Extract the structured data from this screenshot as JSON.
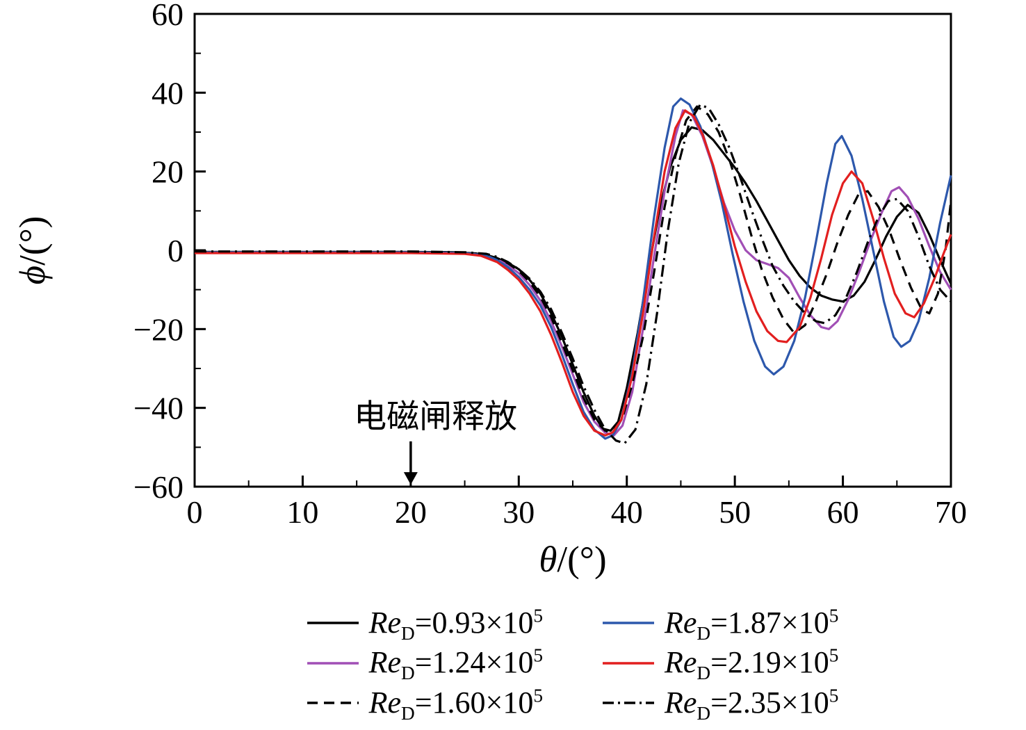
{
  "chart_data": {
    "type": "line",
    "xlabel_symbol": "θ",
    "xlabel_unit": "/(°)",
    "ylabel_symbol": "ϕ",
    "ylabel_unit": "/(°)",
    "xlim": [
      0,
      70
    ],
    "ylim": [
      -60,
      60
    ],
    "x_ticks": [
      0,
      10,
      20,
      30,
      40,
      50,
      60,
      70
    ],
    "y_ticks": [
      -60,
      -40,
      -20,
      0,
      20,
      40,
      60
    ],
    "x_minor_step": 5,
    "y_minor_step": 10,
    "grid": false,
    "legend_position": "bottom",
    "annotation": {
      "text": "电磁闸释放",
      "text_x": 22.3,
      "text_y": -45,
      "arrow_x": 20,
      "arrow_y1": -48.5,
      "arrow_y2": -59.5
    },
    "series": [
      {
        "name": "Re_D=0.93×10^5",
        "color": "#000000",
        "dash": "solid",
        "points": [
          [
            0,
            -0.4
          ],
          [
            5,
            -0.4
          ],
          [
            10,
            -0.4
          ],
          [
            15,
            -0.4
          ],
          [
            20,
            -0.4
          ],
          [
            24,
            -0.5
          ],
          [
            26,
            -0.8
          ],
          [
            27,
            -1.2
          ],
          [
            28,
            -2
          ],
          [
            29,
            -3.2
          ],
          [
            30,
            -4.8
          ],
          [
            31,
            -7.5
          ],
          [
            32,
            -11
          ],
          [
            33,
            -16
          ],
          [
            34,
            -22
          ],
          [
            35,
            -29
          ],
          [
            36,
            -36
          ],
          [
            37,
            -42
          ],
          [
            37.8,
            -45.3
          ],
          [
            38.5,
            -45.8
          ],
          [
            39.2,
            -43.5
          ],
          [
            40,
            -35
          ],
          [
            41,
            -21
          ],
          [
            42,
            -5
          ],
          [
            43,
            10
          ],
          [
            44,
            21
          ],
          [
            45,
            28
          ],
          [
            46,
            31.2
          ],
          [
            47,
            30.5
          ],
          [
            48,
            28
          ],
          [
            49,
            24.5
          ],
          [
            50,
            21
          ],
          [
            51,
            17
          ],
          [
            52,
            12.5
          ],
          [
            53,
            7.5
          ],
          [
            54,
            2.5
          ],
          [
            55,
            -2.5
          ],
          [
            56,
            -6.5
          ],
          [
            57,
            -9.5
          ],
          [
            58,
            -11.5
          ],
          [
            59,
            -12.5
          ],
          [
            60,
            -13
          ],
          [
            61,
            -11.5
          ],
          [
            62,
            -8
          ],
          [
            63,
            -2.5
          ],
          [
            64,
            3.5
          ],
          [
            65,
            8.5
          ],
          [
            66,
            11.5
          ],
          [
            67,
            9.5
          ],
          [
            68,
            4
          ],
          [
            69,
            -2.5
          ],
          [
            70,
            -8.5
          ]
        ]
      },
      {
        "name": "Re_D=1.24×10^5",
        "color": "#A14FB5",
        "dash": "solid",
        "points": [
          [
            0,
            -0.6
          ],
          [
            5,
            -0.6
          ],
          [
            10,
            -0.6
          ],
          [
            15,
            -0.6
          ],
          [
            20,
            -0.6
          ],
          [
            25,
            -0.8
          ],
          [
            27,
            -1.4
          ],
          [
            28,
            -2.3
          ],
          [
            29,
            -3.8
          ],
          [
            30,
            -5.8
          ],
          [
            31,
            -8.8
          ],
          [
            32,
            -12.8
          ],
          [
            33,
            -18
          ],
          [
            34,
            -24.5
          ],
          [
            35,
            -31.5
          ],
          [
            36,
            -38.5
          ],
          [
            37,
            -43.5
          ],
          [
            38,
            -46.3
          ],
          [
            38.8,
            -47
          ],
          [
            39.6,
            -44.5
          ],
          [
            40.5,
            -36
          ],
          [
            41.5,
            -20
          ],
          [
            42.5,
            -2
          ],
          [
            43.5,
            15
          ],
          [
            44.5,
            29
          ],
          [
            45.2,
            35.5
          ],
          [
            46,
            34.5
          ],
          [
            47,
            29
          ],
          [
            48,
            21
          ],
          [
            49,
            12
          ],
          [
            50,
            5
          ],
          [
            51,
            0
          ],
          [
            52,
            -2.5
          ],
          [
            53,
            -3.5
          ],
          [
            54,
            -4.5
          ],
          [
            55,
            -7
          ],
          [
            56,
            -12
          ],
          [
            57,
            -16.5
          ],
          [
            58,
            -19.5
          ],
          [
            58.7,
            -20
          ],
          [
            59.5,
            -18
          ],
          [
            60.5,
            -12.5
          ],
          [
            61.5,
            -5.5
          ],
          [
            62.5,
            2
          ],
          [
            63.5,
            9
          ],
          [
            64.5,
            15
          ],
          [
            65.2,
            16
          ],
          [
            66,
            13.5
          ],
          [
            67,
            8
          ],
          [
            68,
            1
          ],
          [
            69,
            -5.5
          ],
          [
            70,
            -10
          ]
        ]
      },
      {
        "name": "Re_D=1.60×10^5",
        "color": "#000000",
        "dash": "dashed",
        "points": [
          [
            0,
            -0.5
          ],
          [
            5,
            -0.5
          ],
          [
            10,
            -0.5
          ],
          [
            15,
            -0.5
          ],
          [
            20,
            -0.5
          ],
          [
            25,
            -0.7
          ],
          [
            27,
            -1.2
          ],
          [
            28,
            -2
          ],
          [
            29,
            -3.3
          ],
          [
            30,
            -5.2
          ],
          [
            31,
            -8
          ],
          [
            32,
            -11.8
          ],
          [
            33,
            -17
          ],
          [
            34,
            -23.5
          ],
          [
            35,
            -30.5
          ],
          [
            36,
            -37.5
          ],
          [
            37,
            -43
          ],
          [
            38,
            -45.8
          ],
          [
            38.8,
            -45.5
          ],
          [
            39.6,
            -42.5
          ],
          [
            40.5,
            -34
          ],
          [
            41.5,
            -22
          ],
          [
            42.5,
            -6
          ],
          [
            43.5,
            11
          ],
          [
            44.5,
            24
          ],
          [
            45.5,
            33
          ],
          [
            46.5,
            36.5
          ],
          [
            47.5,
            34.5
          ],
          [
            48.5,
            30
          ],
          [
            49.5,
            23
          ],
          [
            50.5,
            14
          ],
          [
            51.5,
            4
          ],
          [
            52.5,
            -5
          ],
          [
            53.5,
            -12
          ],
          [
            54.5,
            -17.5
          ],
          [
            55.5,
            -21
          ],
          [
            56.5,
            -19
          ],
          [
            57.5,
            -13
          ],
          [
            58.5,
            -6
          ],
          [
            59.5,
            2
          ],
          [
            60.5,
            9
          ],
          [
            61.5,
            14.5
          ],
          [
            62.3,
            15
          ],
          [
            63.3,
            11
          ],
          [
            64.3,
            5
          ],
          [
            65.3,
            -2.5
          ],
          [
            66.3,
            -9.5
          ],
          [
            67.3,
            -15
          ],
          [
            68,
            -16
          ],
          [
            68.8,
            -11
          ],
          [
            69.5,
            0
          ],
          [
            70,
            12.5
          ]
        ]
      },
      {
        "name": "Re_D=1.87×10^5",
        "color": "#2D58AC",
        "dash": "solid",
        "points": [
          [
            0,
            -0.5
          ],
          [
            5,
            -0.5
          ],
          [
            10,
            -0.5
          ],
          [
            15,
            -0.5
          ],
          [
            20,
            -0.5
          ],
          [
            25,
            -0.7
          ],
          [
            27,
            -1.3
          ],
          [
            28,
            -2.5
          ],
          [
            29,
            -4.3
          ],
          [
            30,
            -6.8
          ],
          [
            31,
            -10
          ],
          [
            32,
            -14
          ],
          [
            33,
            -19.5
          ],
          [
            34,
            -26.5
          ],
          [
            35,
            -34
          ],
          [
            36,
            -41
          ],
          [
            37,
            -45.5
          ],
          [
            38,
            -47.8
          ],
          [
            38.7,
            -47
          ],
          [
            39.5,
            -43
          ],
          [
            40.5,
            -31
          ],
          [
            41.5,
            -13
          ],
          [
            42.5,
            8
          ],
          [
            43.5,
            26
          ],
          [
            44.3,
            36.5
          ],
          [
            45,
            38.5
          ],
          [
            45.8,
            37
          ],
          [
            46.8,
            31.5
          ],
          [
            47.8,
            23
          ],
          [
            48.8,
            12
          ],
          [
            49.8,
            -1
          ],
          [
            50.8,
            -13
          ],
          [
            51.8,
            -23
          ],
          [
            52.8,
            -29.5
          ],
          [
            53.6,
            -31.5
          ],
          [
            54.5,
            -29.5
          ],
          [
            55.5,
            -23
          ],
          [
            56.5,
            -12
          ],
          [
            57.5,
            2
          ],
          [
            58.5,
            17
          ],
          [
            59.3,
            27
          ],
          [
            59.9,
            29
          ],
          [
            60.8,
            24
          ],
          [
            61.8,
            13
          ],
          [
            62.8,
            0
          ],
          [
            63.8,
            -13
          ],
          [
            64.7,
            -22
          ],
          [
            65.4,
            -24.5
          ],
          [
            66.2,
            -23
          ],
          [
            67,
            -18
          ],
          [
            68,
            -7
          ],
          [
            69,
            7
          ],
          [
            70,
            19
          ]
        ]
      },
      {
        "name": "Re_D=2.19×10^5",
        "color": "#E21F1F",
        "dash": "solid",
        "points": [
          [
            0,
            -0.7
          ],
          [
            5,
            -0.7
          ],
          [
            10,
            -0.7
          ],
          [
            15,
            -0.7
          ],
          [
            20,
            -0.7
          ],
          [
            25,
            -0.9
          ],
          [
            26.5,
            -1.4
          ],
          [
            28,
            -3
          ],
          [
            29,
            -5
          ],
          [
            30,
            -7.5
          ],
          [
            31,
            -11
          ],
          [
            32,
            -15.5
          ],
          [
            33,
            -21.5
          ],
          [
            34,
            -28.5
          ],
          [
            35,
            -36
          ],
          [
            36,
            -42
          ],
          [
            37,
            -45.8
          ],
          [
            38,
            -47
          ],
          [
            38.7,
            -46.2
          ],
          [
            39.5,
            -43
          ],
          [
            40.5,
            -32
          ],
          [
            41.5,
            -16
          ],
          [
            42.5,
            3
          ],
          [
            43.5,
            20
          ],
          [
            44.5,
            31
          ],
          [
            45.4,
            35.5
          ],
          [
            46.2,
            34
          ],
          [
            47,
            29.5
          ],
          [
            48,
            21.5
          ],
          [
            49,
            11.5
          ],
          [
            50,
            1
          ],
          [
            51,
            -8
          ],
          [
            52,
            -15.5
          ],
          [
            53,
            -20.5
          ],
          [
            54,
            -23
          ],
          [
            54.8,
            -23.3
          ],
          [
            56,
            -19.5
          ],
          [
            57,
            -12
          ],
          [
            58,
            -2
          ],
          [
            59,
            9
          ],
          [
            60,
            17
          ],
          [
            60.8,
            20
          ],
          [
            61.8,
            17
          ],
          [
            62.8,
            8
          ],
          [
            63.8,
            -2
          ],
          [
            64.8,
            -11
          ],
          [
            65.8,
            -16
          ],
          [
            66.6,
            -17
          ],
          [
            67.5,
            -13.5
          ],
          [
            68.5,
            -7
          ],
          [
            69.3,
            -1
          ],
          [
            70,
            4
          ]
        ]
      },
      {
        "name": "Re_D=2.35×10^5",
        "color": "#000000",
        "dash": "dashdot",
        "points": [
          [
            0,
            -0.3
          ],
          [
            5,
            -0.3
          ],
          [
            10,
            -0.3
          ],
          [
            15,
            -0.3
          ],
          [
            20,
            -0.3
          ],
          [
            25,
            -0.5
          ],
          [
            27,
            -0.9
          ],
          [
            28,
            -1.7
          ],
          [
            29,
            -3
          ],
          [
            30,
            -4.8
          ],
          [
            31,
            -7.2
          ],
          [
            32,
            -10.5
          ],
          [
            33,
            -15
          ],
          [
            34,
            -21
          ],
          [
            35,
            -27.5
          ],
          [
            36,
            -34.5
          ],
          [
            37,
            -40.5
          ],
          [
            38,
            -45.5
          ],
          [
            39,
            -48.3
          ],
          [
            39.8,
            -49
          ],
          [
            40.8,
            -45.5
          ],
          [
            41.8,
            -34
          ],
          [
            42.8,
            -16
          ],
          [
            43.8,
            5
          ],
          [
            44.8,
            22
          ],
          [
            45.8,
            32.5
          ],
          [
            46.8,
            37
          ],
          [
            47.6,
            36
          ],
          [
            48.5,
            32
          ],
          [
            49.5,
            26
          ],
          [
            50.5,
            18.5
          ],
          [
            51.5,
            10.5
          ],
          [
            52.5,
            3
          ],
          [
            53.5,
            -4
          ],
          [
            54.5,
            -9
          ],
          [
            55.5,
            -13
          ],
          [
            56.5,
            -16
          ],
          [
            57.5,
            -18
          ],
          [
            58.3,
            -18.5
          ],
          [
            59.3,
            -16.5
          ],
          [
            60.3,
            -12
          ],
          [
            61.3,
            -5.5
          ],
          [
            62.3,
            2
          ],
          [
            63.3,
            8.5
          ],
          [
            64.2,
            12.5
          ],
          [
            65,
            13
          ],
          [
            66,
            10
          ],
          [
            67,
            3.5
          ],
          [
            68,
            -4
          ],
          [
            69,
            -10
          ],
          [
            70,
            -13
          ]
        ]
      }
    ]
  }
}
